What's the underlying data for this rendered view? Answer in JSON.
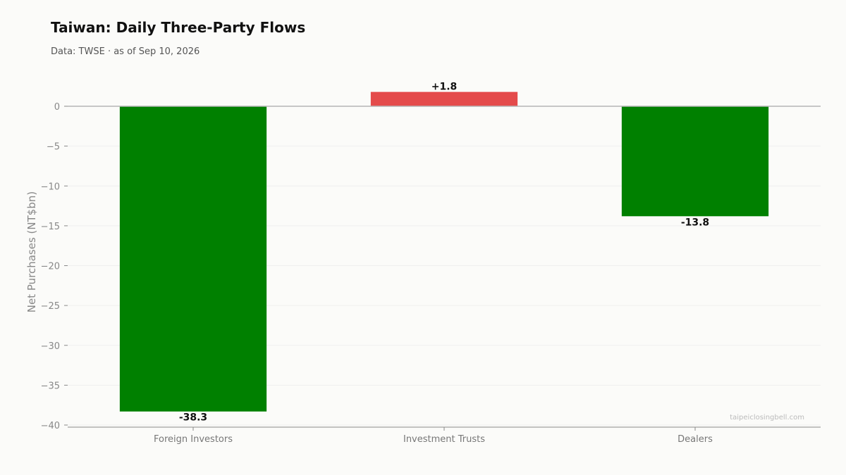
{
  "header": {
    "title": "Taiwan: Daily Three-Party Flows",
    "subtitle": "Data: TWSE · as of Sep 10, 2026"
  },
  "watermark": "taipeiclosingbell.com",
  "colors": {
    "positive": "#e44b4b",
    "negative": "#008000",
    "grid": "#efefef",
    "zero_line": "#b5b5b5",
    "axis": "#888888"
  },
  "chart_data": {
    "type": "bar",
    "title": "Taiwan: Daily Three-Party Flows",
    "subtitle": "Data: TWSE · as of Sep 10, 2026",
    "xlabel": "",
    "ylabel": "Net Purchases (NT$bn)",
    "categories": [
      "Foreign Investors",
      "Investment Trusts",
      "Dealers"
    ],
    "values": [
      -38.3,
      1.8,
      -13.8
    ],
    "data_labels": [
      "-38.3",
      "+1.8",
      "-13.8"
    ],
    "ylim": [
      -40,
      0
    ],
    "yticks": [
      0,
      -5,
      -10,
      -15,
      -20,
      -25,
      -30,
      -35,
      -40
    ],
    "ytick_labels": [
      "0",
      "−5",
      "−10",
      "−15",
      "−20",
      "−25",
      "−30",
      "−35",
      "−40"
    ],
    "grid": true,
    "legend": "none"
  }
}
